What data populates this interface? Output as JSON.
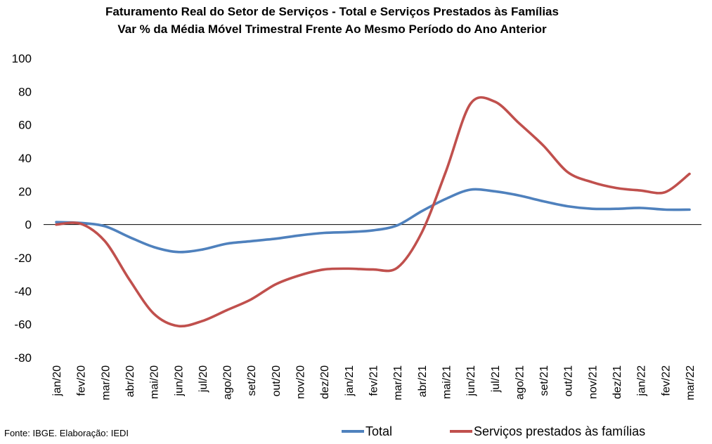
{
  "chart_data": {
    "type": "line",
    "title": "Faturamento  Real do Setor de Serviços - Total e Serviços Prestados às Famílias",
    "subtitle": "Var % da Média Móvel Trimestral Frente Ao Mesmo Período do Ano Anterior",
    "categories": [
      "jan/20",
      "fev/20",
      "mar/20",
      "abr/20",
      "mai/20",
      "jun/20",
      "jul/20",
      "ago/20",
      "set/20",
      "out/20",
      "nov/20",
      "dez/20",
      "jan/21",
      "fev/21",
      "mar/21",
      "abr/21",
      "mai/21",
      "jun/21",
      "jul/21",
      "ago/21",
      "set/21",
      "out/21",
      "nov/21",
      "dez/21",
      "jan/22",
      "fev/22",
      "mar/22"
    ],
    "ylim": [
      -80,
      100
    ],
    "yticks": [
      "100",
      "80",
      "60",
      "40",
      "20",
      "0",
      "-20",
      "-40",
      "-60",
      "-80"
    ],
    "series": [
      {
        "name": "Total",
        "color": "#4f81bd",
        "values": [
          1.5,
          1.0,
          -1.0,
          -7.5,
          -13.5,
          -16.5,
          -15.0,
          -11.5,
          -10.0,
          -8.5,
          -6.5,
          -5.0,
          -4.5,
          -3.5,
          -0.5,
          8.0,
          15.5,
          21.0,
          20.0,
          17.5,
          14.0,
          11.0,
          9.5,
          9.5,
          10.0,
          9.0,
          9.0
        ]
      },
      {
        "name": "Serviços prestados às famílias",
        "color": "#c0504d",
        "values": [
          0.0,
          0.5,
          -10.0,
          -33.0,
          -53.5,
          -61.0,
          -58.0,
          -51.5,
          -45.0,
          -36.0,
          -30.5,
          -27.0,
          -26.5,
          -27.0,
          -26.0,
          -5.0,
          32.0,
          72.5,
          74.0,
          61.0,
          47.5,
          31.5,
          25.5,
          22.0,
          20.5,
          19.5,
          30.5
        ]
      }
    ],
    "grid": false,
    "legend_position": "bottom"
  },
  "source_note": "Fonte: IBGE. Elaboração: IEDI"
}
